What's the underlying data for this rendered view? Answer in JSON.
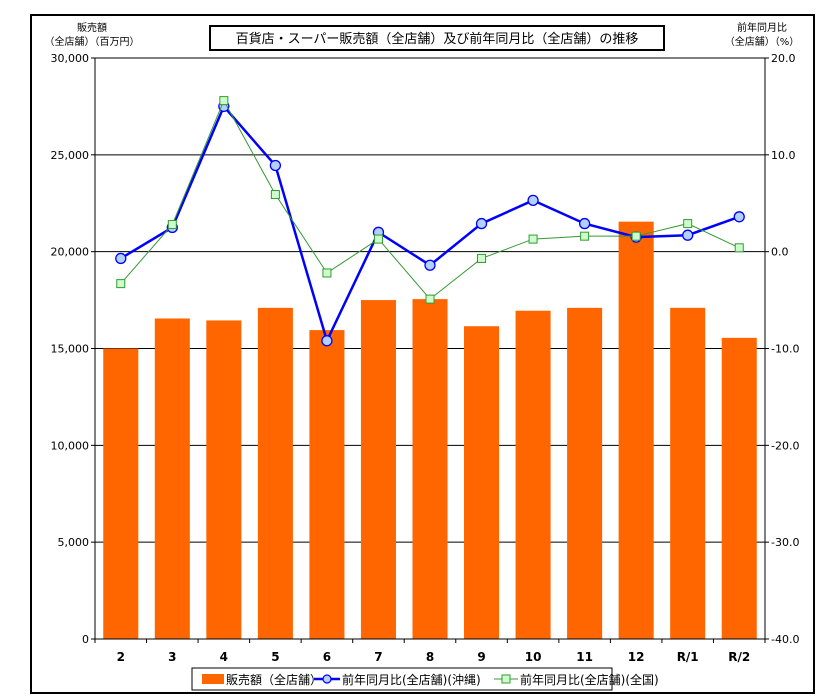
{
  "chart_data": {
    "type": "bar+line",
    "title": "百貨店・スーパー販売額（全店舗）及び前年同月比（全店舗）の推移",
    "ylabel_left": [
      "販売額",
      "（全店舗）（百万円）"
    ],
    "ylabel_right": [
      "前年同月比",
      "（全店舗）（%）"
    ],
    "categories": [
      "2",
      "3",
      "4",
      "5",
      "6",
      "7",
      "8",
      "9",
      "10",
      "11",
      "12",
      "R/1",
      "R/2"
    ],
    "ylim_left": [
      0,
      30000
    ],
    "ylim_right": [
      -40,
      20
    ],
    "left_ticks": [
      "0",
      "5,000",
      "10,000",
      "15,000",
      "20,000",
      "25,000",
      "30,000"
    ],
    "left_tick_values": [
      0,
      5000,
      10000,
      15000,
      20000,
      25000,
      30000
    ],
    "right_ticks": [
      "-40.0",
      "-30.0",
      "-20.0",
      "-10.0",
      "0.0",
      "10.0",
      "20.0"
    ],
    "right_tick_values": [
      -40,
      -30,
      -20,
      -10,
      0,
      10,
      20
    ],
    "series": [
      {
        "name": "販売額（全店舗）",
        "kind": "bar",
        "axis": "left",
        "color": "#ff6600",
        "values": [
          15000,
          16550,
          16450,
          17100,
          15950,
          17500,
          17550,
          16150,
          16950,
          17100,
          21550,
          17100,
          15550
        ]
      },
      {
        "name": "前年同月比(全店舗)(沖縄)",
        "kind": "line",
        "axis": "right",
        "color": "#0000ff",
        "marker": "circle",
        "values": [
          -0.7,
          2.5,
          15.0,
          8.9,
          -9.2,
          2.0,
          -1.4,
          2.9,
          5.3,
          2.9,
          1.5,
          1.7,
          3.6
        ]
      },
      {
        "name": "前年同月比(全店舗)(全国)",
        "kind": "line",
        "axis": "right",
        "color": "#339933",
        "marker": "square",
        "values": [
          -3.3,
          2.8,
          15.6,
          5.9,
          -2.2,
          1.3,
          -4.9,
          -0.7,
          1.3,
          1.6,
          1.6,
          2.9,
          0.4
        ]
      }
    ],
    "grid": "horizontal",
    "legend": "bottom"
  }
}
